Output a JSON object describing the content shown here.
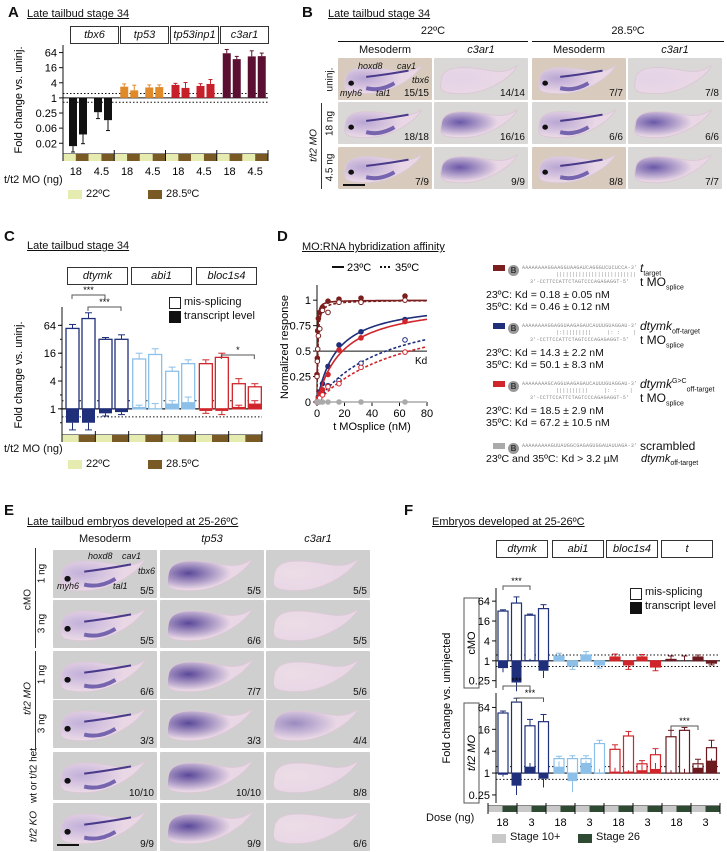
{
  "panels": {
    "A": {
      "label": "A",
      "title": "Late tailbud stage 34",
      "genes": [
        "tbx6",
        "tp53",
        "tp53inp1",
        "c3ar1"
      ],
      "xaxis_prefix": "t/t2 MO (ng)",
      "legend": [
        {
          "label": "22ºC",
          "color": "#e6ebb0"
        },
        {
          "label": "28.5ºC",
          "color": "#7a5a24"
        }
      ]
    },
    "B": {
      "label": "B",
      "title": "Late tailbud stage 34",
      "temps": [
        "22ºC",
        "28.5ºC"
      ],
      "col_heads": [
        "Mesoderm",
        "c3ar1",
        "Mesoderm",
        "c3ar1"
      ],
      "row_labels": [
        "uninj.",
        "18 ng",
        "4.5 ng"
      ],
      "group_label": "t/t2 MO",
      "marker_labels": [
        "hoxd8",
        "cav1",
        "tbx6",
        "myh6",
        "tal1"
      ],
      "counts": [
        [
          "15/15",
          "14/14",
          "7/7",
          "7/8"
        ],
        [
          "18/18",
          "16/16",
          "6/6",
          "6/6"
        ],
        [
          "7/9",
          "9/9",
          "8/8",
          "7/7"
        ]
      ]
    },
    "C": {
      "label": "C",
      "title": "Late tailbud stage 34",
      "genes": [
        "dtymk",
        "abi1",
        "bloc1s4"
      ],
      "legend": [
        "mis-splicing",
        "transcript level"
      ],
      "xaxis_prefix": "t/t2 MO (ng)",
      "sig": [
        "***",
        "***",
        "*"
      ],
      "temp_legend": [
        {
          "label": "22ºC",
          "color": "#e6ebb0"
        },
        {
          "label": "28.5ºC",
          "color": "#7a5a24"
        }
      ]
    },
    "D": {
      "label": "D",
      "title": "MO:RNA hybridization affinity",
      "line_legend": [
        "23ºC",
        "35ºC"
      ],
      "kd_label": "Kd",
      "entries": [
        {
          "seq": "AAAAAAAAGGAAGGUAAGAUCAGGGUCUCUCCA-3'",
          "pair": "|||||||||||||||||||||||||",
          "mo": "3'-CCTTCCATTCTAGTCCCAGAGAGGT-5'",
          "name": "t",
          "name_sub": "target",
          "mo_name": "t MO",
          "mo_sub": "splice",
          "kd1": "23ºC: Kd = 0.18 ± 0.05 nM",
          "kd2": "35ºC: Kd = 0.46 ± 0.12 nM",
          "color": "#7a1e1e"
        },
        {
          "seq": "AAAAAAAAGGAGGUAAGAGAUCAUUUGUAGGAU-3'",
          "pair": "|:|||||||||     |: :    |",
          "mo": "3'-CCTTCCATTCTAGTCCCAGAGAGGT-5'",
          "name": "dtymk",
          "name_sub": "off-target",
          "mo_name": "t MO",
          "mo_sub": "splice",
          "kd1": "23ºC: Kd = 14.3 ± 2.2 nM",
          "kd2": "35ºC: Kd = 50.1 ± 8.3 nM",
          "color": "#1f2f7a"
        },
        {
          "seq": "AAAAAAAAGCAGGUAAGAGAUCAUUUGUAGGAU-3'",
          "pair": "||||||||||     |: :    |",
          "mo": "3'-CCTTCCATTCTAGTCCCAGAGAGGT-5'",
          "name": "dtymk",
          "name_sup": "G>C",
          "name_sub": "off-target",
          "mo_name": "t MO",
          "mo_sub": "splice",
          "kd1": "23ºC: Kd = 18.5 ± 2.9 nM",
          "kd2": "35ºC: Kd = 67.2 ± 10.5 nM",
          "color": "#d0262b"
        },
        {
          "seq": "AAAAAAAAAGUUAUGGCGAGAGUGGAUAUUAGA-3'",
          "name": "scrambled",
          "name2": "dtymk",
          "name2_sub": "off-target",
          "kd1": "23ºC and 35ºC: Kd > 3.2 µM",
          "color": "#aaaaaa"
        }
      ]
    },
    "E": {
      "label": "E",
      "title": "Late tailbud embryos developed at 25-26ºC",
      "col_heads": [
        "Mesoderm",
        "tp53",
        "c3ar1"
      ],
      "groups": [
        {
          "label": "cMO",
          "rows": [
            "1 ng",
            "3 ng"
          ]
        },
        {
          "label": "t/t2 MO",
          "rows": [
            "1 ng",
            "3 ng"
          ]
        },
        {
          "label": "wt or t/t2 het",
          "rows": [
            ""
          ]
        },
        {
          "label": "t/t2 KO",
          "rows": [
            ""
          ]
        }
      ],
      "marker_labels": [
        "hoxd8",
        "cav1",
        "tbx6",
        "myh6",
        "tal1"
      ],
      "counts": [
        [
          "5/5",
          "5/5",
          "5/5"
        ],
        [
          "5/5",
          "6/6",
          "5/5"
        ],
        [
          "6/6",
          "7/7",
          "5/6"
        ],
        [
          "3/3",
          "3/3",
          "4/4"
        ],
        [
          "10/10",
          "10/10",
          "8/8"
        ],
        [
          "9/9",
          "9/9",
          "6/6"
        ]
      ]
    },
    "F": {
      "label": "F",
      "title": "Embryos developed at 25-26ºC",
      "genes": [
        "dtymk",
        "abi1",
        "bloc1s4",
        "t"
      ],
      "legend": [
        "mis-splicing",
        "transcript level"
      ],
      "row_labels": [
        "cMO",
        "t/t2 MO"
      ],
      "ylabel": "Fold change vs. uninjected",
      "xaxis_prefix": "Dose (ng)",
      "stage_legend": [
        {
          "label": "Stage 10+",
          "color": "#c8c8c8"
        },
        {
          "label": "Stage 26",
          "color": "#2f4a32"
        }
      ],
      "sig": [
        "***",
        "***",
        "***",
        "***"
      ]
    }
  },
  "chart_data": [
    {
      "id": "A",
      "type": "bar",
      "title": "Late tailbud stage 34",
      "ylabel": "Fold change vs. uninj.",
      "yscale": "log2",
      "yticks": [
        "64",
        "16",
        "4",
        "1",
        "0.25",
        "0.06",
        "0.02"
      ],
      "ytick_values": [
        64,
        16,
        4,
        1,
        0.25,
        0.0625,
        0.0156
      ],
      "ylim": [
        0.007,
        128
      ],
      "threshold_lines": [
        1.5,
        0.67
      ],
      "xlabel": "t/t2 MO (ng)",
      "categories": [
        "18",
        "4.5",
        "18",
        "4.5",
        "18",
        "4.5",
        "18",
        "4.5"
      ],
      "series": [
        {
          "name": "tbx6",
          "color": "#111111",
          "values": [
            0.012,
            0.035,
            0.27,
            0.13
          ],
          "err": [
            0.006,
            0.02,
            0.12,
            0.08
          ]
        },
        {
          "name": "tp53",
          "color": "#e08a2a",
          "values": [
            2.8,
            2.0,
            2.6,
            2.7
          ],
          "err": [
            0.8,
            1.2,
            0.7,
            0.6
          ]
        },
        {
          "name": "tp53inp1",
          "color": "#c8202a",
          "values": [
            3.3,
            2.5,
            3.0,
            3.6
          ],
          "err": [
            0.5,
            1.6,
            0.7,
            1.8
          ]
        },
        {
          "name": "c3ar1",
          "color": "#5c1031",
          "values": [
            60,
            35,
            45,
            46
          ],
          "err": [
            25,
            10,
            30,
            15
          ]
        }
      ],
      "temps": [
        "22ºC",
        "28.5ºC",
        "22ºC",
        "28.5ºC"
      ]
    },
    {
      "id": "C",
      "type": "bar",
      "title": "Late tailbud stage 34",
      "ylabel": "Fold change vs. uninj.",
      "yscale": "log2",
      "yticks": [
        "64",
        "16",
        "4",
        "1"
      ],
      "ylim": [
        0.3,
        160
      ],
      "threshold_lines": [
        1.5,
        0.67
      ],
      "xlabel": "t/t2 MO (ng)",
      "categories": [
        "18",
        "4.5",
        "18",
        "4.5",
        "18",
        "4.5"
      ],
      "series": [
        {
          "name": "dtymk",
          "color": "#1f2f7a",
          "light": "#8a95c8",
          "missplicing": [
            55,
            90,
            32,
            32
          ],
          "ms_err": [
            12,
            30,
            3,
            8
          ],
          "transcript": [
            0.5,
            0.5,
            0.8,
            0.85
          ],
          "tr_err": [
            0.15,
            0.15,
            0.1,
            0.1
          ]
        },
        {
          "name": "abi1",
          "color": "#8cc0e8",
          "light": "#b8d8f2",
          "missplicing": [
            12,
            15,
            6.5,
            9.5
          ],
          "ms_err": [
            4,
            5,
            1.5,
            2
          ],
          "transcript": [
            1.1,
            1.0,
            1.3,
            1.4
          ],
          "tr_err": [
            0.1,
            0.3,
            0.2,
            0.4
          ]
        },
        {
          "name": "bloc1s4",
          "color": "#d0262b",
          "light": "#e58a8d",
          "missplicing": [
            9.5,
            13,
            3.5,
            3.0
          ],
          "ms_err": [
            2,
            3,
            1,
            0.5
          ],
          "transcript": [
            0.9,
            0.9,
            1.1,
            1.3
          ],
          "tr_err": [
            0.1,
            0.15,
            0.1,
            0.2
          ]
        }
      ],
      "significance": [
        {
          "between": [
            "dtymk 18 22ºC",
            "dtymk 4.5 22ºC"
          ],
          "label": "***"
        },
        {
          "between": [
            "dtymk 18 28.5ºC",
            "dtymk 4.5 28.5ºC"
          ],
          "label": "***"
        },
        {
          "between": [
            "bloc1s4 18 28.5ºC",
            "bloc1s4 4.5 28.5ºC"
          ],
          "label": "*"
        }
      ]
    },
    {
      "id": "D",
      "type": "line",
      "title": "MO:RNA hybridization affinity",
      "xlabel": "t MOsplice (nM)",
      "ylabel": "Normalized response",
      "xlim": [
        0,
        80
      ],
      "ylim": [
        0,
        1.1
      ],
      "xticks": [
        0,
        20,
        40,
        60,
        80
      ],
      "yticks": [
        0,
        0.25,
        0.5,
        0.75,
        1
      ],
      "hline": 0.5,
      "x": [
        0,
        0.25,
        0.5,
        1,
        2,
        4,
        8,
        16,
        32,
        64
      ],
      "series": [
        {
          "name": "t target 23ºC",
          "style": "solid",
          "color": "#7a1e1e",
          "kd": 0.18,
          "points": [
            0.27,
            0.43,
            0.7,
            0.82,
            0.88,
            0.93,
            0.99,
            1.01,
            1.02,
            1.04
          ]
        },
        {
          "name": "t target 35ºC",
          "style": "dashed",
          "color": "#7a1e1e",
          "kd": 0.46,
          "points": [
            0.25,
            0.4,
            0.52,
            0.65,
            0.72,
            0.9,
            0.88,
            0.98,
            0.98,
            1.0
          ]
        },
        {
          "name": "dtymk off-target 23ºC",
          "style": "solid",
          "color": "#1f2f7a",
          "kd": 14.3,
          "points": [
            0,
            0,
            0,
            0.05,
            0.1,
            0.18,
            0.35,
            0.56,
            0.69,
            0.81
          ]
        },
        {
          "name": "dtymk off-target 35ºC",
          "style": "dashed",
          "color": "#1f2f7a",
          "kd": 50.1,
          "points": [
            0,
            0,
            0,
            0.02,
            0.05,
            0.08,
            0.16,
            0.21,
            0.38,
            0.61
          ]
        },
        {
          "name": "dtymk G>C off-target 23ºC",
          "style": "solid",
          "color": "#d0262b",
          "kd": 18.5,
          "points": [
            0,
            0,
            0,
            0.04,
            0.08,
            0.12,
            0.27,
            0.51,
            0.63,
            0.79
          ]
        },
        {
          "name": "dtymk G>C off-target 35ºC",
          "style": "dashed",
          "color": "#d0262b",
          "kd": 67.2,
          "points": [
            0,
            0,
            0,
            0.02,
            0.04,
            0.07,
            0.15,
            0.18,
            0.34,
            0.49
          ]
        },
        {
          "name": "scrambled 23ºC and 35ºC",
          "style": "solid",
          "color": "#aaaaaa",
          "kd": 3200,
          "points": [
            0,
            0,
            0,
            0,
            0,
            0,
            0,
            0,
            0,
            0
          ]
        }
      ]
    },
    {
      "id": "F",
      "type": "bar",
      "title": "Embryos developed at 25-26ºC",
      "ylabel": "Fold change vs. uninjected",
      "yscale": "log2",
      "yticks": [
        "64",
        "16",
        "4",
        "1",
        "0.25"
      ],
      "ylim": [
        0.15,
        160
      ],
      "threshold_lines": [
        1.5,
        0.67
      ],
      "xlabel": "Dose (ng)",
      "categories": [
        "18",
        "3",
        "18",
        "3",
        "18",
        "3",
        "18",
        "3"
      ],
      "stages": [
        "Stage 10+",
        "Stage 26"
      ],
      "rows": [
        {
          "name": "cMO",
          "series": [
            {
              "name": "dtymk",
              "color": "#1f2f7a",
              "missplicing": [
                32,
                56,
                24,
                38
              ],
              "ms_err": [
                3,
                30,
                2,
                12
              ],
              "transcript": [
                0.6,
                0.22,
                1.05,
                0.5
              ],
              "tr_err": [
                0.15,
                0.1,
                0.1,
                0.2
              ]
            },
            {
              "name": "abi1",
              "color": "#8cc0e8",
              "missplicing": [
                1.4,
                0.7,
                1.5,
                0.75
              ],
              "ms_err": [
                0.3,
                0.15,
                0.4,
                0.15
              ],
              "transcript": [
                1.4,
                0.7,
                1.5,
                0.75
              ],
              "tr_err": [
                0.3,
                0.15,
                0.4,
                0.15
              ]
            },
            {
              "name": "bloc1s4",
              "color": "#d0262b",
              "missplicing": [
                1.3,
                0.75,
                1.3,
                0.65
              ],
              "ms_err": [
                0.3,
                0.2,
                0.25,
                0.15
              ],
              "transcript": [
                1.3,
                0.75,
                1.3,
                0.65
              ],
              "tr_err": [
                0.3,
                0.2,
                0.25,
                0.15
              ]
            },
            {
              "name": "t",
              "color": "#6b1a20",
              "missplicing": [
                1.1,
                1.0,
                1.3,
                0.85
              ],
              "ms_err": [
                0.3,
                0.4,
                0.2,
                0.1
              ],
              "transcript": [
                1.1,
                1.0,
                1.3,
                0.85
              ],
              "tr_err": [
                0.3,
                0.4,
                0.2,
                0.1
              ]
            }
          ]
        },
        {
          "name": "t/t2 MO",
          "series": [
            {
              "name": "dtymk",
              "color": "#1f2f7a",
              "missplicing": [
                45,
                90,
                20,
                26
              ],
              "ms_err": [
                6,
                25,
                10,
                15
              ],
              "transcript": [
                0.9,
                0.45,
                1.5,
                0.7
              ],
              "tr_err": [
                0.1,
                0.2,
                0.4,
                0.3
              ]
            },
            {
              "name": "abi1",
              "color": "#8cc0e8",
              "missplicing": [
                2.5,
                2.5,
                2.5,
                6.5
              ],
              "ms_err": [
                0.4,
                0.5,
                0.5,
                1.5
              ],
              "transcript": [
                1.5,
                0.6,
                1.9,
                1.0
              ],
              "tr_err": [
                0.6,
                0.3,
                0.3,
                0.3
              ]
            },
            {
              "name": "bloc1s4",
              "color": "#d0262b",
              "missplicing": [
                4.5,
                10.5,
                1.8,
                3.2
              ],
              "ms_err": [
                1.5,
                3.5,
                0.4,
                1.5
              ],
              "transcript": [
                1.1,
                1.1,
                1.2,
                1.3
              ],
              "tr_err": [
                0.3,
                0.1,
                0.5,
                0.6
              ]
            },
            {
              "name": "t",
              "color": "#6b1a20",
              "missplicing": [
                10,
                15,
                1.8,
                5
              ],
              "ms_err": [
                5,
                3,
                0.6,
                3
              ],
              "transcript": [
                1.0,
                1.0,
                1.4,
                2.2
              ],
              "tr_err": [
                0.2,
                0.3,
                0.3,
                0.3
              ]
            }
          ]
        }
      ]
    }
  ]
}
